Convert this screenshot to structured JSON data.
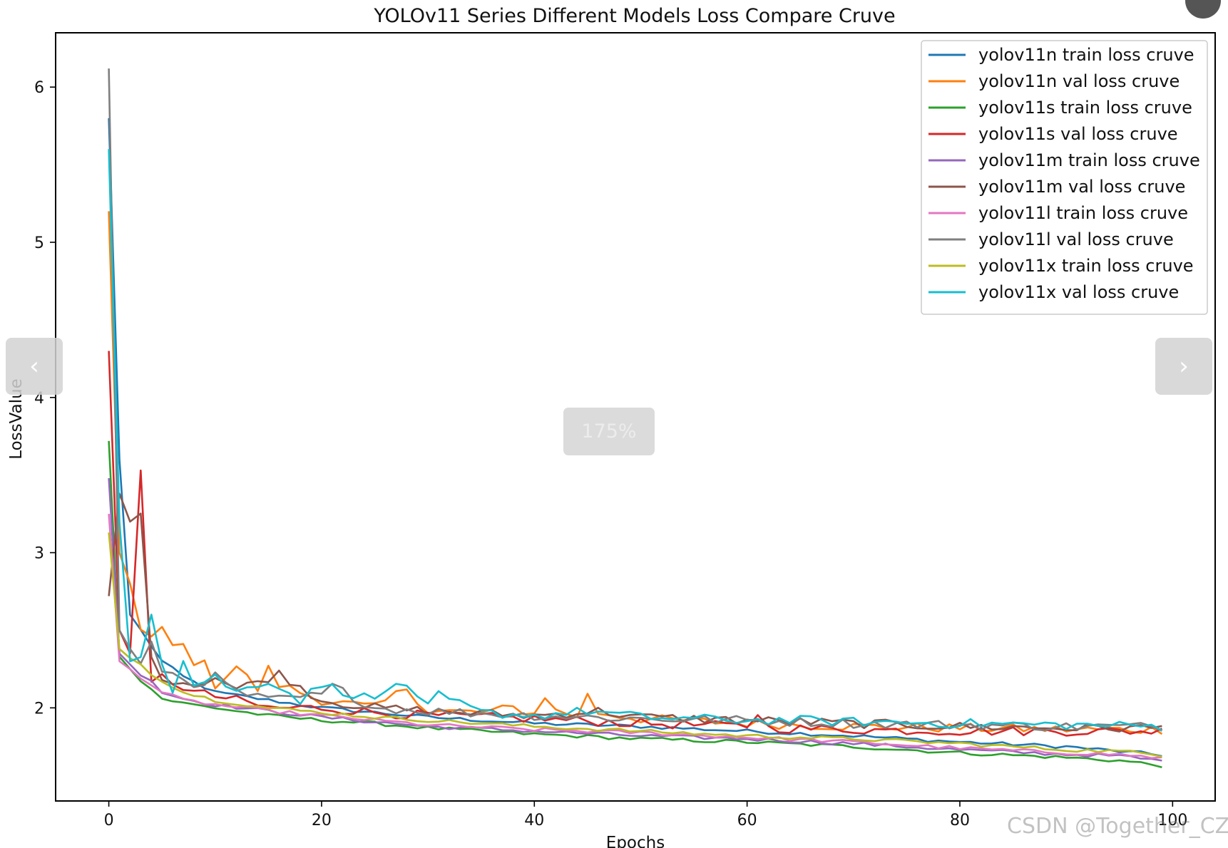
{
  "viewer": {
    "prev_icon": "chevron-left-icon",
    "next_icon": "chevron-right-icon",
    "prev_glyph": "‹",
    "next_glyph": "›",
    "zoom_level": "175%",
    "watermark": "CSDN @Together_CZ"
  },
  "chart_data": {
    "type": "line",
    "title": "YOLOv11 Series Different Models Loss Compare Cruve",
    "xlabel": "Epochs",
    "ylabel": "LossValue",
    "xlim": [
      -5,
      104
    ],
    "ylim": [
      1.4,
      6.35
    ],
    "xticks": [
      0,
      20,
      40,
      60,
      80,
      100
    ],
    "yticks": [
      2,
      3,
      4,
      5,
      6
    ],
    "grid": false,
    "legend_position": "top-right",
    "series": [
      {
        "name": "yolov11n train loss cruve",
        "color": "#1f77b4",
        "kind": "train",
        "x": [
          0,
          1,
          2,
          3,
          4,
          5,
          7,
          10,
          15,
          20,
          25,
          30,
          40,
          50,
          60,
          70,
          80,
          90,
          95,
          100
        ],
        "y": [
          5.8,
          3.6,
          2.6,
          2.5,
          2.4,
          2.3,
          2.2,
          2.1,
          2.05,
          2.0,
          1.97,
          1.94,
          1.9,
          1.88,
          1.85,
          1.82,
          1.78,
          1.75,
          1.72,
          1.69
        ]
      },
      {
        "name": "yolov11n val loss cruve",
        "color": "#ff7f0e",
        "kind": "val",
        "x": [
          0,
          1,
          2,
          3,
          4,
          5,
          6,
          7,
          8,
          9,
          10,
          12,
          14,
          15,
          16,
          18,
          20,
          25,
          28,
          30,
          35,
          38,
          40,
          41,
          42,
          44,
          45,
          46,
          50,
          60,
          70,
          80,
          90,
          100
        ],
        "y": [
          5.2,
          3.0,
          2.8,
          2.5,
          2.45,
          2.5,
          2.4,
          2.4,
          2.3,
          2.28,
          2.15,
          2.27,
          2.12,
          2.25,
          2.15,
          2.1,
          2.05,
          2.0,
          2.13,
          1.98,
          1.97,
          2.0,
          1.96,
          2.08,
          1.98,
          1.95,
          2.08,
          1.97,
          1.93,
          1.9,
          1.88,
          1.87,
          1.86,
          1.86
        ]
      },
      {
        "name": "yolov11s train loss cruve",
        "color": "#2ca02c",
        "kind": "train",
        "x": [
          0,
          1,
          2,
          3,
          4,
          5,
          7,
          10,
          15,
          20,
          25,
          30,
          40,
          50,
          60,
          70,
          80,
          90,
          95,
          100
        ],
        "y": [
          3.72,
          2.33,
          2.25,
          2.18,
          2.12,
          2.06,
          2.03,
          2.0,
          1.95,
          1.92,
          1.9,
          1.87,
          1.83,
          1.8,
          1.78,
          1.75,
          1.71,
          1.68,
          1.66,
          1.62
        ]
      },
      {
        "name": "yolov11s val loss cruve",
        "color": "#d62728",
        "kind": "val",
        "x": [
          0,
          1,
          2,
          3,
          4,
          5,
          8,
          12,
          15,
          20,
          25,
          30,
          40,
          50,
          60,
          61,
          62,
          70,
          80,
          90,
          100
        ],
        "y": [
          4.3,
          2.5,
          2.35,
          3.5,
          2.15,
          2.2,
          2.1,
          2.05,
          2.0,
          2.0,
          1.97,
          1.95,
          1.93,
          1.9,
          1.88,
          1.97,
          1.87,
          1.86,
          1.85,
          1.85,
          1.85
        ]
      },
      {
        "name": "yolov11m train loss cruve",
        "color": "#9467bd",
        "kind": "train",
        "x": [
          0,
          1,
          2,
          3,
          4,
          5,
          7,
          10,
          15,
          20,
          25,
          30,
          40,
          50,
          60,
          70,
          80,
          90,
          95,
          100
        ],
        "y": [
          3.48,
          2.35,
          2.28,
          2.22,
          2.18,
          2.1,
          2.06,
          2.02,
          1.98,
          1.94,
          1.91,
          1.88,
          1.85,
          1.82,
          1.8,
          1.77,
          1.73,
          1.7,
          1.69,
          1.65
        ]
      },
      {
        "name": "yolov11m val loss cruve",
        "color": "#8c564b",
        "kind": "val",
        "x": [
          0,
          1,
          2,
          3,
          4,
          5,
          8,
          10,
          12,
          16,
          20,
          25,
          30,
          40,
          46,
          50,
          60,
          70,
          80,
          90,
          100
        ],
        "y": [
          2.72,
          3.38,
          3.2,
          3.28,
          2.3,
          2.2,
          2.15,
          2.2,
          2.12,
          2.22,
          2.05,
          2.0,
          1.98,
          1.95,
          1.98,
          1.94,
          1.92,
          1.9,
          1.88,
          1.87,
          1.87
        ]
      },
      {
        "name": "yolov11l train loss cruve",
        "color": "#e377c2",
        "kind": "train",
        "x": [
          0,
          1,
          2,
          3,
          4,
          5,
          7,
          10,
          15,
          20,
          25,
          30,
          40,
          50,
          60,
          70,
          80,
          90,
          95,
          100
        ],
        "y": [
          3.25,
          2.3,
          2.25,
          2.2,
          2.15,
          2.1,
          2.05,
          2.02,
          1.98,
          1.95,
          1.92,
          1.89,
          1.86,
          1.84,
          1.81,
          1.78,
          1.74,
          1.71,
          1.7,
          1.67
        ]
      },
      {
        "name": "yolov11l val loss cruve",
        "color": "#7f7f7f",
        "kind": "val",
        "x": [
          0,
          1,
          2,
          3,
          4,
          5,
          8,
          10,
          12,
          15,
          20,
          21,
          25,
          30,
          40,
          50,
          60,
          70,
          80,
          90,
          100
        ],
        "y": [
          6.12,
          2.5,
          2.38,
          2.28,
          2.4,
          2.25,
          2.15,
          2.2,
          2.1,
          2.05,
          2.08,
          2.14,
          2.0,
          1.98,
          1.95,
          1.93,
          1.92,
          1.9,
          1.89,
          1.88,
          1.88
        ]
      },
      {
        "name": "yolov11x train loss cruve",
        "color": "#bcbd22",
        "kind": "train",
        "x": [
          0,
          1,
          2,
          3,
          4,
          5,
          7,
          10,
          15,
          20,
          25,
          30,
          40,
          50,
          60,
          70,
          80,
          90,
          95,
          100
        ],
        "y": [
          3.13,
          2.38,
          2.32,
          2.28,
          2.22,
          2.18,
          2.1,
          2.05,
          2.0,
          1.97,
          1.94,
          1.92,
          1.88,
          1.85,
          1.82,
          1.8,
          1.77,
          1.73,
          1.72,
          1.69
        ]
      },
      {
        "name": "yolov11x val loss cruve",
        "color": "#17becf",
        "kind": "val",
        "x": [
          0,
          1,
          2,
          3,
          4,
          5,
          6,
          7,
          8,
          10,
          12,
          15,
          18,
          20,
          25,
          27,
          30,
          31,
          35,
          40,
          45,
          50,
          55,
          60,
          65,
          70,
          80,
          90,
          100
        ],
        "y": [
          5.6,
          3.2,
          2.3,
          2.35,
          2.62,
          2.3,
          2.12,
          2.3,
          2.15,
          2.2,
          2.1,
          2.18,
          2.05,
          2.15,
          2.05,
          2.17,
          2.0,
          2.08,
          1.97,
          1.95,
          1.98,
          1.94,
          1.93,
          1.92,
          1.92,
          1.91,
          1.9,
          1.89,
          1.88
        ]
      }
    ]
  }
}
